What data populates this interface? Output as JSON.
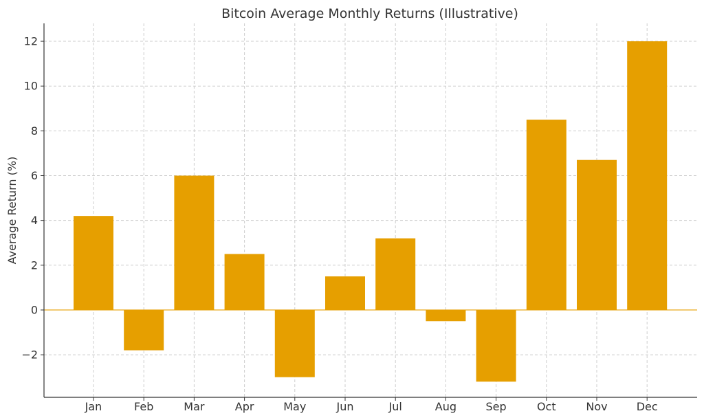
{
  "chart_data": {
    "type": "bar",
    "title": "Bitcoin Average Monthly Returns (Illustrative)",
    "xlabel": "",
    "ylabel": "Average Return (%)",
    "categories": [
      "Jan",
      "Feb",
      "Mar",
      "Apr",
      "May",
      "Jun",
      "Jul",
      "Aug",
      "Sep",
      "Oct",
      "Nov",
      "Dec"
    ],
    "values": [
      4.2,
      -1.8,
      6.0,
      2.5,
      -3.0,
      1.5,
      3.2,
      -0.5,
      -3.2,
      8.5,
      6.7,
      12.0
    ],
    "ylim": [
      -3.9,
      12.8
    ],
    "yticks": [
      -2,
      0,
      2,
      4,
      6,
      8,
      10,
      12
    ],
    "ytick_labels": [
      "−2",
      "0",
      "2",
      "4",
      "6",
      "8",
      "10",
      "12"
    ],
    "grid": true,
    "zero_line": true,
    "colors": {
      "bar": "#E69F00",
      "zero_line": "#E69F00",
      "grid": "#cccccc",
      "axis": "#333333"
    }
  }
}
